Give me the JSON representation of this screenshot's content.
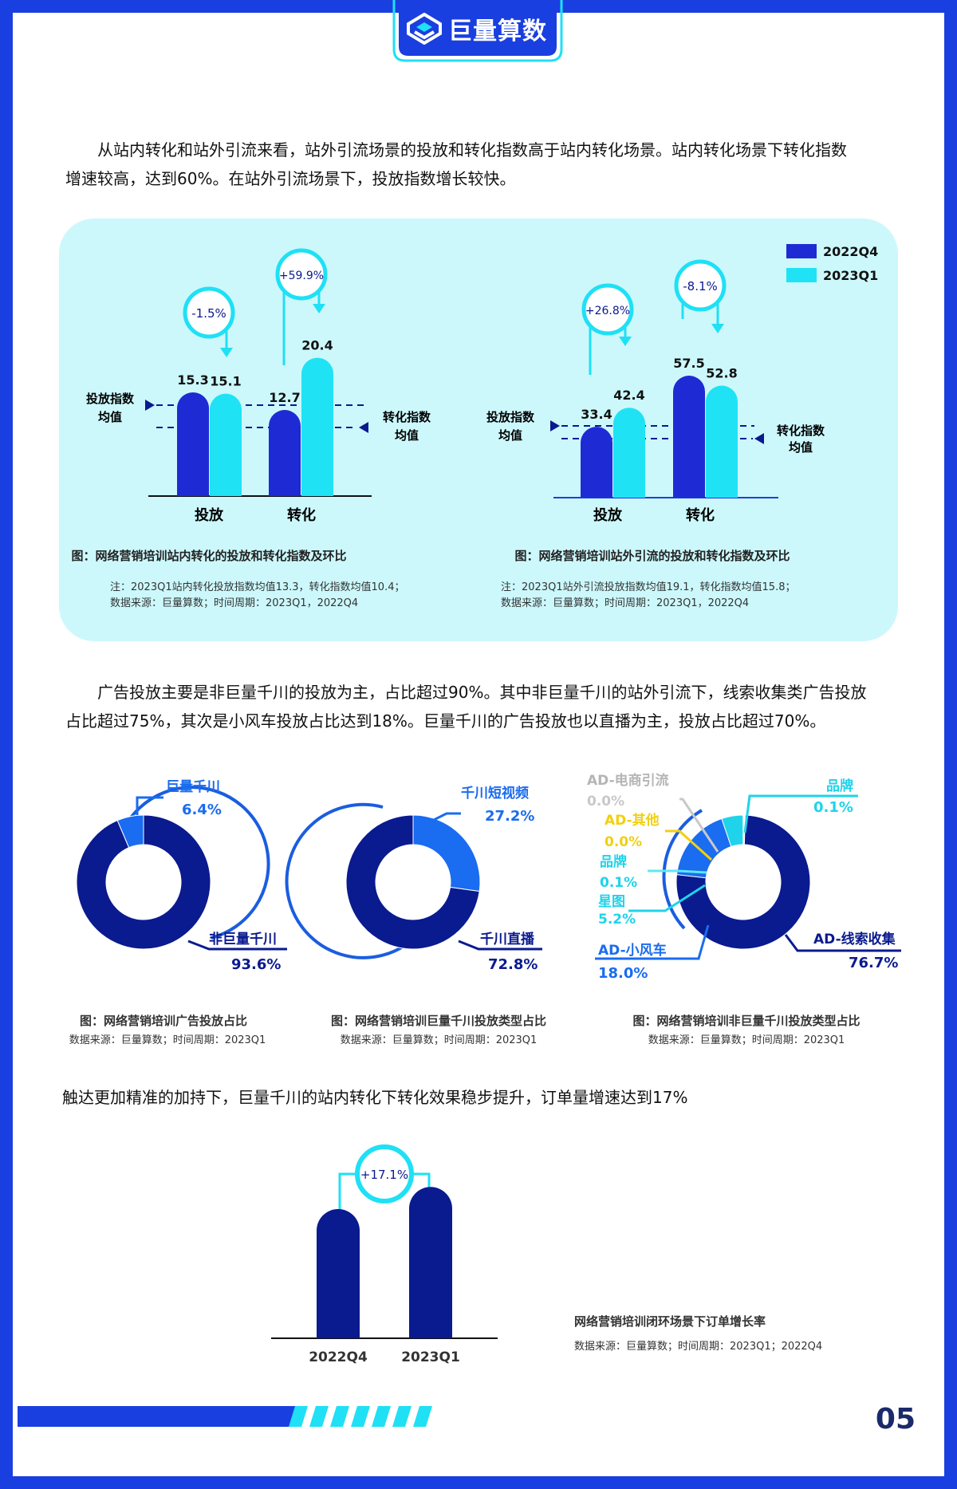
{
  "brand": {
    "name": "巨量算数",
    "accent": "#1a3fe0",
    "cyan": "#1fe0f5",
    "navy": "#0a1a8f"
  },
  "paragraph1": {
    "line1": "从站内转化和站外引流来看，站外引流场景的投放和转化指数高于站内转化场景。站内转化场景下转化指数",
    "line2": "增速较高，达到60%。在站外引流场景下，投放指数增长较快。"
  },
  "legend": {
    "items": [
      "2022Q4",
      "2023Q1"
    ],
    "colors": [
      "#1e2bd4",
      "#1fe3f5"
    ]
  },
  "chart_data": [
    {
      "type": "bar",
      "title": "图：网络营销培训站内转化的投放和转化指数及环比",
      "note": "注：2023Q1站内转化投放指数均值13.3，转化指数均值10.4；",
      "source": "数据来源：巨量算数；时间周期：2023Q1，2022Q4",
      "categories": [
        "投放",
        "转化"
      ],
      "series": [
        {
          "name": "2022Q4",
          "values": [
            15.3,
            12.7
          ]
        },
        {
          "name": "2023Q1",
          "values": [
            15.1,
            20.4
          ]
        }
      ],
      "changes": [
        "-1.5%",
        "+59.9%"
      ],
      "reference_lines": [
        {
          "label_l1": "投放指数",
          "label_l2": "均值",
          "value": 13.3
        },
        {
          "label_l1": "转化指数",
          "label_l2": "均值",
          "value": 10.4
        }
      ],
      "ylim": [
        0,
        25
      ]
    },
    {
      "type": "bar",
      "title": "图：网络营销培训站外引流的投放和转化指数及环比",
      "note": "注：2023Q1站外引流投放指数均值19.1，转化指数均值15.8；",
      "source": "数据来源：巨量算数；时间周期：2023Q1，2022Q4",
      "categories": [
        "投放",
        "转化"
      ],
      "series": [
        {
          "name": "2022Q4",
          "values": [
            33.4,
            57.5
          ]
        },
        {
          "name": "2023Q1",
          "values": [
            42.4,
            52.8
          ]
        }
      ],
      "changes": [
        "+26.8%",
        "-8.1%"
      ],
      "reference_lines": [
        {
          "label_l1": "投放指数",
          "label_l2": "均值",
          "value": 19.1
        },
        {
          "label_l1": "转化指数",
          "label_l2": "均值",
          "value": 15.8
        }
      ],
      "ylim": [
        0,
        70
      ]
    },
    {
      "type": "pie",
      "title": "图：网络营销培训广告投放占比",
      "source": "数据来源：巨量算数；时间周期：2023Q1",
      "slices": [
        {
          "label": "巨量千川",
          "pct": "6.4%",
          "value": 6.4,
          "color": "#1a6cf0"
        },
        {
          "label": "非巨量千川",
          "pct": "93.6%",
          "value": 93.6,
          "color": "#0a1a8f"
        }
      ]
    },
    {
      "type": "pie",
      "title": "图：网络营销培训巨量千川投放类型占比",
      "source": "数据来源：巨量算数；时间周期：2023Q1",
      "slices": [
        {
          "label": "千川短视频",
          "pct": "27.2%",
          "value": 27.2,
          "color": "#1a6cf0"
        },
        {
          "label": "千川直播",
          "pct": "72.8%",
          "value": 72.8,
          "color": "#0a1a8f"
        }
      ]
    },
    {
      "type": "pie",
      "title": "图：网络营销培训非巨量千川投放类型占比",
      "source": "数据来源：巨量算数；时间周期：2023Q1",
      "slices": [
        {
          "label": "AD-线索收集",
          "pct": "76.7%",
          "value": 76.7,
          "color": "#0a1a8f"
        },
        {
          "label": "AD-小风车",
          "pct": "18.0%",
          "value": 18.0,
          "color": "#1a6cf0"
        },
        {
          "label": "星图",
          "pct": "5.2%",
          "value": 5.2,
          "color": "#1fd3ea"
        },
        {
          "label": "品牌",
          "pct": "0.1%",
          "value": 0.1,
          "color": "#5ee8f5"
        },
        {
          "label": "AD-其他",
          "pct": "0.0%",
          "value": 0.0,
          "color": "#f2cf10"
        },
        {
          "label": "AD-电商引流",
          "pct": "0.0%",
          "value": 0.0,
          "color": "#c8c8c8"
        },
        {
          "label": "品牌",
          "pct": "0.1%",
          "value": 0.1,
          "color": "#1fd3ea"
        }
      ]
    },
    {
      "type": "bar",
      "title": "网络营销培训闭环场景下订单增长率",
      "source": "数据来源：巨量算数；时间周期：2023Q1；2022Q4",
      "categories": [
        "2022Q4",
        "2023Q1"
      ],
      "values": [
        100,
        117.1
      ],
      "change": "+17.1%"
    }
  ],
  "paragraph2": {
    "line1": "广告投放主要是非巨量千川的投放为主，占比超过90%。其中非巨量千川的站外引流下，线索收集类广告投放",
    "line2": "占比超过75%，其次是小风车投放占比达到18%。巨量千川的广告投放也以直播为主，投放占比超过70%。"
  },
  "paragraph3": "触达更加精准的加持下，巨量千川的站内转化下转化效果稳步提升，订单量增速达到17%",
  "page_number": "05"
}
